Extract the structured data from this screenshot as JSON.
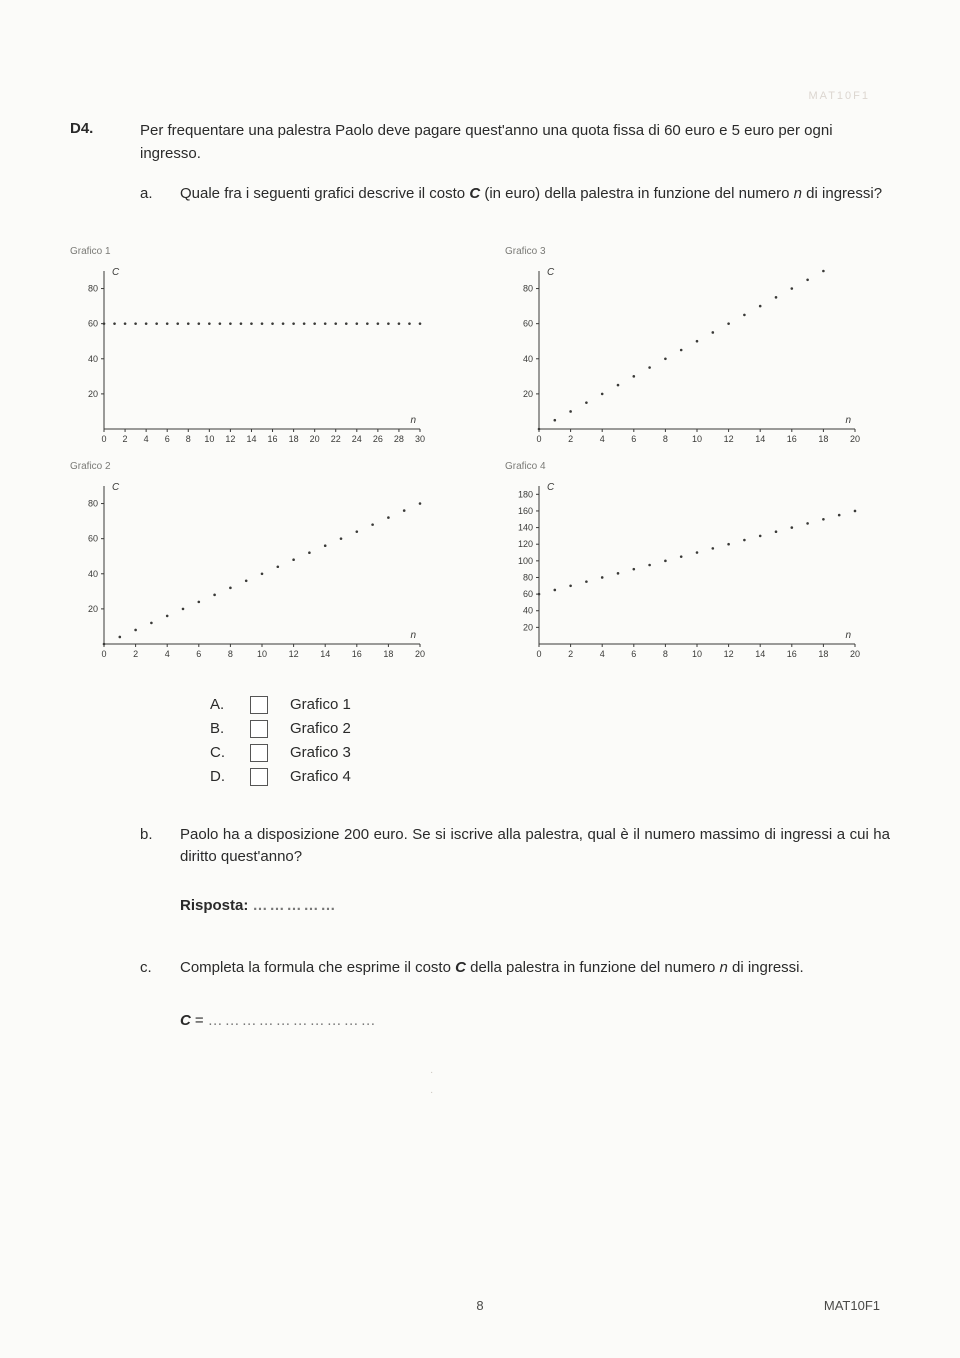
{
  "header_faint": "MAT10F1",
  "question_number": "D4.",
  "intro_text": "Per frequentare una palestra Paolo deve pagare quest'anno una quota fissa di 60 euro e 5 euro per ogni ingresso.",
  "part_a": {
    "label": "a.",
    "text_before_C": "Quale fra i seguenti grafici descrive il costo ",
    "var_C": "C",
    "text_mid": " (in euro) della palestra in funzione del numero ",
    "var_n": "n",
    "text_after": " di ingressi?"
  },
  "charts": {
    "axis_color": "#3a3a38",
    "dot_color": "#3a3a38",
    "background": "#fbfbf9",
    "y_label": "C",
    "x_label": "n",
    "items": [
      {
        "title": "Grafico 1",
        "x_ticks": [
          0,
          2,
          4,
          6,
          8,
          10,
          12,
          14,
          16,
          18,
          20,
          22,
          24,
          26,
          28,
          30
        ],
        "y_ticks": [
          20,
          40,
          60,
          80
        ],
        "xlim": [
          0,
          30
        ],
        "ylim": [
          0,
          90
        ],
        "points_fn": "constant60",
        "dot_step": 1
      },
      {
        "title": "Grafico 3",
        "x_ticks": [
          0,
          2,
          4,
          6,
          8,
          10,
          12,
          14,
          16,
          18,
          20
        ],
        "y_ticks": [
          20,
          40,
          60,
          80
        ],
        "xlim": [
          0,
          20
        ],
        "ylim": [
          0,
          90
        ],
        "points_fn": "slope5",
        "dot_step": 1
      },
      {
        "title": "Grafico 2",
        "x_ticks": [
          0,
          2,
          4,
          6,
          8,
          10,
          12,
          14,
          16,
          18,
          20
        ],
        "y_ticks": [
          20,
          40,
          60,
          80
        ],
        "xlim": [
          0,
          20
        ],
        "ylim": [
          0,
          90
        ],
        "points_fn": "slope4",
        "dot_step": 1
      },
      {
        "title": "Grafico 4",
        "x_ticks": [
          0,
          2,
          4,
          6,
          8,
          10,
          12,
          14,
          16,
          18,
          20
        ],
        "y_ticks": [
          20,
          40,
          60,
          80,
          100,
          120,
          140,
          160,
          180
        ],
        "xlim": [
          0,
          20
        ],
        "ylim": [
          0,
          190
        ],
        "points_fn": "offset60slope5",
        "dot_step": 1
      }
    ]
  },
  "options": [
    {
      "letter": "A.",
      "label": "Grafico 1"
    },
    {
      "letter": "B.",
      "label": "Grafico 2"
    },
    {
      "letter": "C.",
      "label": "Grafico 3"
    },
    {
      "letter": "D.",
      "label": "Grafico 4"
    }
  ],
  "part_b": {
    "label": "b.",
    "text": "Paolo ha a disposizione 200 euro. Se si iscrive alla palestra, qual è il numero massimo di ingressi a cui ha diritto quest'anno?",
    "answer_label": "Risposta:",
    "blank": "……………"
  },
  "part_c": {
    "label": "c.",
    "text_before": "Completa la formula che esprime il costo ",
    "var_C": "C",
    "text_mid": " della palestra in funzione del numero ",
    "var_n": "n",
    "text_after": " di ingressi.",
    "formula_lhs": "C",
    "equals": " = ",
    "blank": "…………………………"
  },
  "page_number": "8",
  "doc_id": "MAT10F1"
}
